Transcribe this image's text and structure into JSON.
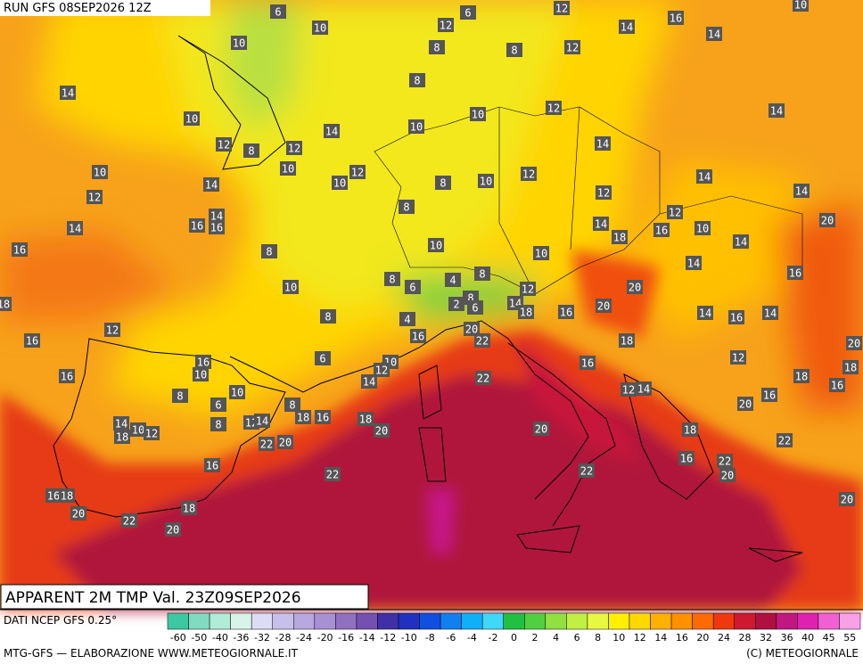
{
  "header": {
    "run": "RUN GFS 08SEP2026 12Z",
    "title": "APPARENT 2M TMP Val. 23Z09SEP2026"
  },
  "footer": {
    "source": "DATI NCEP GFS 0.25°",
    "credit": "MTG-GFS — ELABORAZIONE WWW.METEOGIORNALE.IT",
    "copyright": "(C) METEOGIORNALE"
  },
  "colorbar": {
    "ticks": [
      -60,
      -50,
      -40,
      -36,
      -32,
      -28,
      -24,
      -20,
      -16,
      -14,
      -12,
      -10,
      -8,
      -6,
      -4,
      -2,
      0,
      2,
      4,
      6,
      8,
      10,
      12,
      14,
      16,
      20,
      24,
      28,
      32,
      36,
      40,
      45,
      55
    ],
    "colors": [
      "#3cc8a0",
      "#7fdcc0",
      "#b0ecd8",
      "#d8f4e8",
      "#dcdcf4",
      "#c8c0ec",
      "#b8a8e0",
      "#a890d4",
      "#9070c0",
      "#7450b0",
      "#4030a8",
      "#2030c0",
      "#1050e0",
      "#1080f0",
      "#10b0f8",
      "#40d8f8",
      "#20c040",
      "#50d040",
      "#90e040",
      "#c0f040",
      "#e8f840",
      "#fff000",
      "#ffd800",
      "#ffb000",
      "#ff9000",
      "#ff6a00",
      "#f03810",
      "#d01830",
      "#b01040",
      "#c01880",
      "#e020b0",
      "#f060d0",
      "#f8a0e8"
    ]
  },
  "map_labels": [
    6,
    6,
    12,
    10,
    16,
    10,
    10,
    12,
    14,
    14,
    8,
    12,
    8,
    14,
    8,
    10,
    12,
    10,
    14,
    12,
    8,
    12,
    14,
    10,
    14,
    10,
    10,
    12,
    10,
    8,
    10,
    12,
    14,
    12,
    14,
    12,
    14,
    8,
    14,
    12,
    20,
    14,
    16,
    16,
    14,
    16,
    10,
    14,
    16,
    10,
    8,
    18,
    10,
    14,
    16,
    8,
    10,
    8,
    6,
    4,
    8,
    12,
    20,
    18,
    14,
    2,
    6,
    18,
    16,
    20,
    8,
    14,
    16,
    14,
    4,
    16,
    20,
    22,
    18,
    16,
    12,
    20,
    6,
    16,
    10,
    10,
    12,
    12,
    16,
    16,
    22,
    14,
    18,
    18,
    16,
    10,
    8,
    8,
    6,
    16,
    12,
    14,
    20,
    18,
    16,
    18,
    8,
    12,
    14,
    14,
    10,
    12,
    18,
    20,
    20,
    18,
    22,
    20,
    22,
    16,
    16,
    22,
    20,
    22,
    22,
    16,
    18,
    20,
    20,
    18,
    22,
    20
  ]
}
